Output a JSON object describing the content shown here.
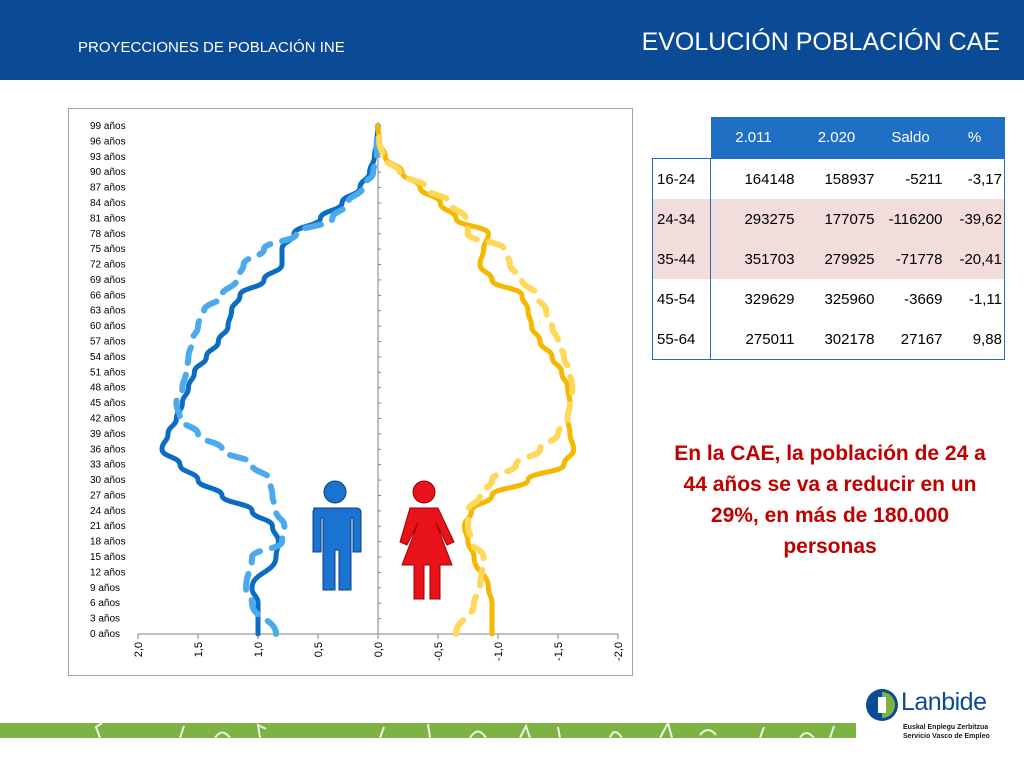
{
  "header": {
    "subtitle": "PROYECCIONES DE POBLACIÓN INE",
    "title": "EVOLUCIÓN POBLACIÓN CAE"
  },
  "colors": {
    "header_bg": "#0b4a94",
    "male_2011": "#0a6cc2",
    "male_2020": "#4ba9ee",
    "female_2011": "#f5b800",
    "female_2020": "#ffd85a",
    "male_icon": "#1a73d0",
    "female_icon": "#e8121a",
    "table_header": "#1f6fc5",
    "table_alt_row": "#f3dcdc",
    "callout": "#c00000",
    "footer_band": "#7cb342"
  },
  "chart_data": {
    "type": "line",
    "y_tick_labels": [
      "0 años",
      "3 años",
      "6 años",
      "9 años",
      "12 años",
      "15 años",
      "18 años",
      "21 años",
      "24 años",
      "27 años",
      "30 años",
      "33 años",
      "36 años",
      "39 años",
      "42 años",
      "45 años",
      "48 años",
      "51 años",
      "54 años",
      "57 años",
      "60 años",
      "63 años",
      "66 años",
      "69 años",
      "72 años",
      "75 años",
      "78 años",
      "81 años",
      "84 años",
      "87 años",
      "90 años",
      "93 años",
      "96 años",
      "99 años"
    ],
    "x_tick_labels": [
      "2,0",
      "1,5",
      "1,0",
      "0,5",
      "0,0",
      "-0,5",
      "-1,0",
      "-1,5",
      "-2,0"
    ],
    "x_ticks": [
      2.0,
      1.5,
      1.0,
      0.5,
      0.0,
      -0.5,
      -1.0,
      -1.5,
      -2.0
    ],
    "xlim": [
      2.0,
      -2.0
    ],
    "ylim": [
      0,
      99
    ],
    "ages": [
      0,
      6,
      9,
      15,
      18,
      21,
      24,
      27,
      30,
      33,
      36,
      39,
      42,
      45,
      48,
      51,
      54,
      57,
      60,
      63,
      66,
      69,
      72,
      75,
      78,
      81,
      84,
      87,
      90,
      93,
      96,
      99
    ],
    "series": [
      {
        "key": "male_2011",
        "style": "solid",
        "values": [
          1.0,
          1.0,
          1.05,
          0.85,
          0.83,
          0.88,
          1.05,
          1.3,
          1.5,
          1.65,
          1.8,
          1.75,
          1.68,
          1.63,
          1.58,
          1.53,
          1.43,
          1.33,
          1.25,
          1.22,
          1.15,
          0.95,
          0.8,
          0.8,
          0.7,
          0.48,
          0.3,
          0.15,
          0.07,
          0.03,
          0.01,
          0.0
        ]
      },
      {
        "key": "male_2020",
        "style": "dashed",
        "values": [
          0.85,
          1.05,
          1.1,
          1.05,
          0.8,
          0.78,
          0.85,
          0.88,
          0.9,
          1.05,
          1.3,
          1.5,
          1.65,
          1.68,
          1.63,
          1.6,
          1.58,
          1.55,
          1.5,
          1.45,
          1.3,
          1.18,
          1.12,
          0.95,
          0.68,
          0.38,
          0.25,
          0.13,
          0.04,
          0.01,
          0.01,
          0.0
        ]
      },
      {
        "key": "female_2011",
        "style": "solid",
        "values": [
          -0.95,
          -0.95,
          -0.92,
          -0.8,
          -0.75,
          -0.72,
          -0.78,
          -0.95,
          -1.25,
          -1.55,
          -1.63,
          -1.6,
          -1.58,
          -1.6,
          -1.58,
          -1.53,
          -1.45,
          -1.35,
          -1.28,
          -1.25,
          -1.2,
          -0.95,
          -0.85,
          -0.88,
          -0.92,
          -0.65,
          -0.52,
          -0.35,
          -0.2,
          -0.06,
          -0.01,
          0.0
        ]
      },
      {
        "key": "female_2020",
        "style": "dashed",
        "values": [
          -0.65,
          -0.8,
          -0.85,
          -0.88,
          -0.78,
          -0.75,
          -0.75,
          -0.85,
          -0.95,
          -1.15,
          -1.35,
          -1.5,
          -1.58,
          -1.6,
          -1.62,
          -1.6,
          -1.55,
          -1.5,
          -1.45,
          -1.4,
          -1.32,
          -1.2,
          -1.1,
          -1.05,
          -0.75,
          -0.73,
          -0.6,
          -0.4,
          -0.18,
          -0.04,
          -0.01,
          0.0
        ]
      }
    ]
  },
  "table": {
    "headers": [
      "",
      "2.011",
      "2.020",
      "Saldo",
      "%"
    ],
    "rows": [
      [
        "16-24",
        "164148",
        "158937",
        "-5211",
        "-3,17"
      ],
      [
        "24-34",
        "293275",
        "177075",
        "-116200",
        "-39,62"
      ],
      [
        "35-44",
        "351703",
        "279925",
        "-71778",
        "-20,41"
      ],
      [
        "45-54",
        "329629",
        "325960",
        "-3669",
        "-1,11"
      ],
      [
        "55-64",
        "275011",
        "302178",
        "27167",
        "9,88"
      ]
    ]
  },
  "callout": {
    "text": "En la CAE, la población de 24 a 44 años se va a reducir en un 29%, en más de 180.000 personas"
  },
  "logo": {
    "name": "Lanbide",
    "tagline_1": "Euskal Enplegu Zerbitzua",
    "tagline_2": "Servicio Vasco de Empleo"
  }
}
